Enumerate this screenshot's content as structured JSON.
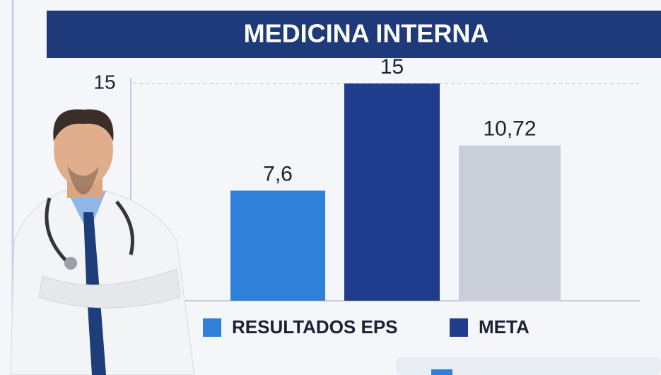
{
  "chart_data": {
    "type": "bar",
    "title": "MEDICINA INTERNA",
    "categories": [
      null,
      null,
      null
    ],
    "values": [
      7.6,
      15,
      10.72
    ],
    "value_labels": [
      "7,6",
      "15",
      "10,72"
    ],
    "colors": [
      "#2f80d8",
      "#1f3d8c",
      "#c9ced8"
    ],
    "legend": [
      {
        "name": "RESULTADOS EPS",
        "color": "#2f80d8"
      },
      {
        "name": "META",
        "color": "#1f3d8c"
      }
    ],
    "ylim": [
      0,
      15
    ],
    "yticks": [
      15
    ],
    "grid": true
  }
}
